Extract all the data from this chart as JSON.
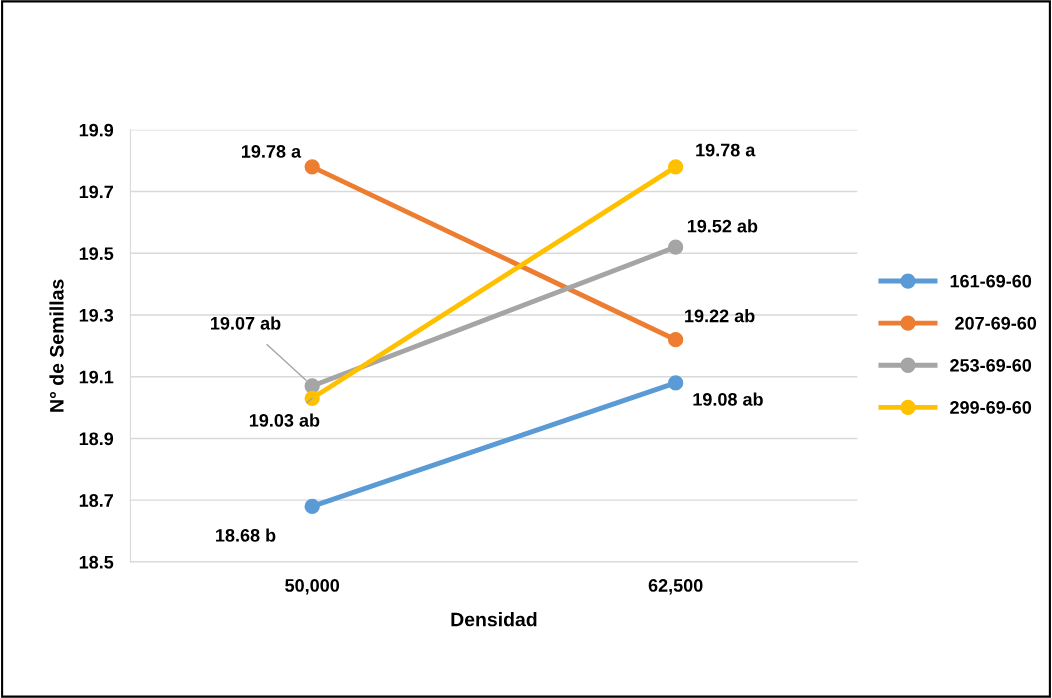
{
  "chart_data": {
    "type": "line",
    "xlabel": "Densidad",
    "ylabel": "N° de Semillas",
    "categories": [
      "50,000",
      "62,500"
    ],
    "series": [
      {
        "name": "161-69-60",
        "color": "#5b9bd5",
        "values": [
          18.68,
          19.08
        ],
        "value_labels": [
          "18.68 b",
          "19.08 ab"
        ]
      },
      {
        "name": " 207-69-60",
        "color": "#ed7d31",
        "values": [
          19.78,
          19.22
        ],
        "value_labels": [
          "19.78 a",
          "19.22 ab"
        ]
      },
      {
        "name": "253-69-60",
        "color": "#a5a5a5",
        "values": [
          19.07,
          19.52
        ],
        "value_labels": [
          "19.07 ab",
          "19.52 ab"
        ]
      },
      {
        "name": "299-69-60",
        "color": "#ffc000",
        "values": [
          19.03,
          19.78
        ],
        "value_labels": [
          "19.03 ab",
          "19.78 a"
        ]
      }
    ],
    "ylim": [
      18.5,
      19.9
    ],
    "yticks": [
      18.5,
      18.7,
      18.9,
      19.1,
      19.3,
      19.5,
      19.7,
      19.9
    ],
    "grid": "y",
    "legend": "right",
    "marker": "circle",
    "line_style": "solid"
  }
}
